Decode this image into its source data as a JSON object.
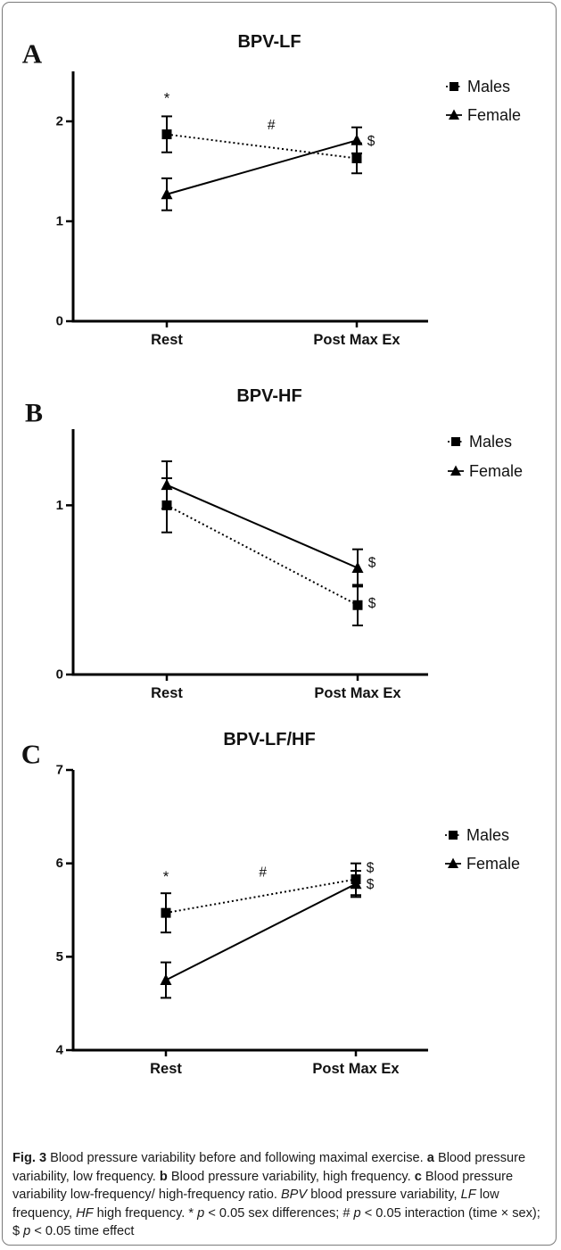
{
  "chart_data": [
    {
      "type": "line",
      "panel_letter": "A",
      "title": "BPV-LF",
      "categories": [
        "Rest",
        "Post Max Ex"
      ],
      "ylim": [
        0,
        2.5
      ],
      "yticks": [
        "0",
        "1",
        "2"
      ],
      "series": [
        {
          "name": "Males",
          "marker": "square",
          "line": "dotted",
          "values": [
            1.87,
            1.63
          ],
          "errors": [
            0.18,
            0.15
          ]
        },
        {
          "name": "Female",
          "marker": "triangle",
          "line": "solid",
          "values": [
            1.27,
            1.81
          ],
          "errors": [
            0.16,
            0.13
          ]
        }
      ],
      "annotations": [
        {
          "text": "*",
          "x": "Rest",
          "y": 2.23
        },
        {
          "text": "#",
          "x_mid": 0.55,
          "y": 1.96
        },
        {
          "text": "$",
          "x": "Post Max Ex",
          "y": 1.8,
          "side": "right"
        }
      ],
      "legend": "top-right"
    },
    {
      "type": "line",
      "panel_letter": "B",
      "title": "BPV-HF",
      "categories": [
        "Rest",
        "Post Max Ex"
      ],
      "ylim": [
        0,
        1.45
      ],
      "yticks": [
        "0",
        "1"
      ],
      "series": [
        {
          "name": "Males",
          "marker": "square",
          "line": "dotted",
          "values": [
            1.0,
            0.41
          ],
          "errors": [
            0.16,
            0.12
          ]
        },
        {
          "name": "Female",
          "marker": "triangle",
          "line": "solid",
          "values": [
            1.12,
            0.63
          ],
          "errors": [
            0.14,
            0.11
          ]
        }
      ],
      "annotations": [
        {
          "text": "$",
          "x": "Post Max Ex",
          "y": 0.66,
          "side": "right"
        },
        {
          "text": "$",
          "x": "Post Max Ex",
          "y": 0.42,
          "side": "right"
        }
      ],
      "legend": "top-right"
    },
    {
      "type": "line",
      "panel_letter": "C",
      "title": "BPV-LF/HF",
      "categories": [
        "Rest",
        "Post Max Ex"
      ],
      "ylim": [
        4,
        7
      ],
      "yticks": [
        "4",
        "5",
        "6",
        "7"
      ],
      "series": [
        {
          "name": "Males",
          "marker": "square",
          "line": "dotted",
          "values": [
            5.47,
            5.83
          ],
          "errors": [
            0.21,
            0.17
          ]
        },
        {
          "name": "Female",
          "marker": "triangle",
          "line": "solid",
          "values": [
            4.75,
            5.78
          ],
          "errors": [
            0.19,
            0.14
          ]
        }
      ],
      "annotations": [
        {
          "text": "*",
          "x": "Rest",
          "y": 5.86
        },
        {
          "text": "#",
          "x_mid": 0.51,
          "y": 5.9
        },
        {
          "text": "$",
          "x": "Post Max Ex",
          "y": 5.95,
          "side": "right"
        },
        {
          "text": "$",
          "x": "Post Max Ex",
          "y": 5.77,
          "side": "right"
        }
      ],
      "legend": "top-right"
    }
  ],
  "caption": {
    "fig_label": "Fig. 3",
    "intro": " Blood pressure variability before and following maximal exercise. ",
    "a_label": "a",
    "a_text": " Blood pressure variability, low frequency. ",
    "b_label": "b",
    "b_text": " Blood pressure variability, high frequency. ",
    "c_label": "c",
    "c_text": " Blood pressure variability low-frequency/ high-frequency ratio. ",
    "bpv_abbr": "BPV",
    "bpv_text": " blood pressure variability, ",
    "lf_abbr": "LF",
    "lf_text": " low frequency, ",
    "hf_abbr": "HF",
    "hf_text": " high frequency. * ",
    "p1": "p",
    "t1": " < 0.05 sex differences; # ",
    "p2": "p",
    "t2": " < 0.05 interaction (time × sex); $ ",
    "p3": "p",
    "t3": " < 0.05 time effect"
  }
}
